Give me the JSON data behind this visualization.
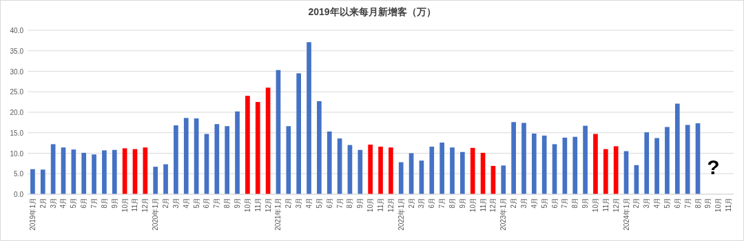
{
  "chart_data": {
    "type": "bar",
    "title": "2019年以来每月新增客（万）",
    "categories": [
      "2019年1月",
      "2月",
      "3月",
      "4月",
      "5月",
      "6月",
      "7月",
      "8月",
      "9月",
      "10月",
      "11月",
      "12月",
      "2020年1月",
      "2月",
      "3月",
      "4月",
      "5月",
      "6月",
      "7月",
      "8月",
      "9月",
      "10月",
      "11月",
      "12月",
      "2021年1月",
      "2月",
      "3月",
      "4月",
      "5月",
      "6月",
      "7月",
      "8月",
      "9月",
      "10月",
      "11月",
      "12月",
      "2022年1月",
      "2月",
      "3月",
      "6月",
      "7月",
      "8月",
      "9月",
      "10月",
      "11月",
      "12月",
      "2023年1月",
      "2月",
      "3月",
      "4月",
      "5月",
      "6月",
      "7月",
      "8月",
      "9月",
      "10月",
      "11月",
      "12月",
      "2024年1月",
      "2月",
      "3月",
      "4月",
      "5月",
      "6月",
      "7月",
      "8月",
      "9月",
      "10月",
      "11月"
    ],
    "values": [
      6.1,
      6.0,
      12.2,
      11.4,
      10.9,
      10.1,
      9.7,
      10.7,
      10.8,
      11.2,
      11.0,
      11.4,
      6.7,
      7.3,
      16.8,
      18.6,
      18.5,
      14.7,
      17.1,
      16.6,
      20.2,
      24.0,
      22.5,
      26.0,
      30.3,
      16.6,
      29.5,
      37.1,
      22.7,
      15.3,
      13.6,
      12.0,
      10.8,
      12.1,
      11.6,
      11.4,
      7.8,
      10.0,
      8.2,
      11.6,
      12.6,
      11.4,
      10.3,
      11.3,
      10.1,
      6.9,
      7.0,
      17.6,
      17.4,
      14.8,
      14.3,
      12.2,
      13.8,
      14.0,
      16.7,
      14.7,
      11.0,
      11.7,
      10.5,
      7.1,
      15.1,
      13.7,
      16.4,
      22.1,
      16.9,
      17.3,
      null,
      null,
      null
    ],
    "colors": [
      "#4472c4",
      "#4472c4",
      "#4472c4",
      "#4472c4",
      "#4472c4",
      "#4472c4",
      "#4472c4",
      "#4472c4",
      "#4472c4",
      "#ff0000",
      "#ff0000",
      "#ff0000",
      "#4472c4",
      "#4472c4",
      "#4472c4",
      "#4472c4",
      "#4472c4",
      "#4472c4",
      "#4472c4",
      "#4472c4",
      "#4472c4",
      "#ff0000",
      "#ff0000",
      "#ff0000",
      "#4472c4",
      "#4472c4",
      "#4472c4",
      "#4472c4",
      "#4472c4",
      "#4472c4",
      "#4472c4",
      "#4472c4",
      "#4472c4",
      "#ff0000",
      "#ff0000",
      "#ff0000",
      "#4472c4",
      "#4472c4",
      "#4472c4",
      "#4472c4",
      "#4472c4",
      "#4472c4",
      "#4472c4",
      "#ff0000",
      "#ff0000",
      "#ff0000",
      "#4472c4",
      "#4472c4",
      "#4472c4",
      "#4472c4",
      "#4472c4",
      "#4472c4",
      "#4472c4",
      "#4472c4",
      "#4472c4",
      "#ff0000",
      "#ff0000",
      "#ff0000",
      "#4472c4",
      "#4472c4",
      "#4472c4",
      "#4472c4",
      "#4472c4",
      "#4472c4",
      "#4472c4",
      "#4472c4",
      null,
      null,
      null
    ],
    "ylim": [
      0,
      40
    ],
    "yticks": [
      {
        "value": 0,
        "label": "0.0"
      },
      {
        "value": 5,
        "label": "5.0"
      },
      {
        "value": 10,
        "label": "10.0"
      },
      {
        "value": 15,
        "label": "15.0"
      },
      {
        "value": 20,
        "label": "20.0"
      },
      {
        "value": 25,
        "label": "25.0"
      },
      {
        "value": 30,
        "label": "30.0"
      },
      {
        "value": 35,
        "label": "35.0"
      },
      {
        "value": 40,
        "label": "40.0"
      }
    ],
    "grid": "y",
    "annotations": [
      "?"
    ]
  }
}
